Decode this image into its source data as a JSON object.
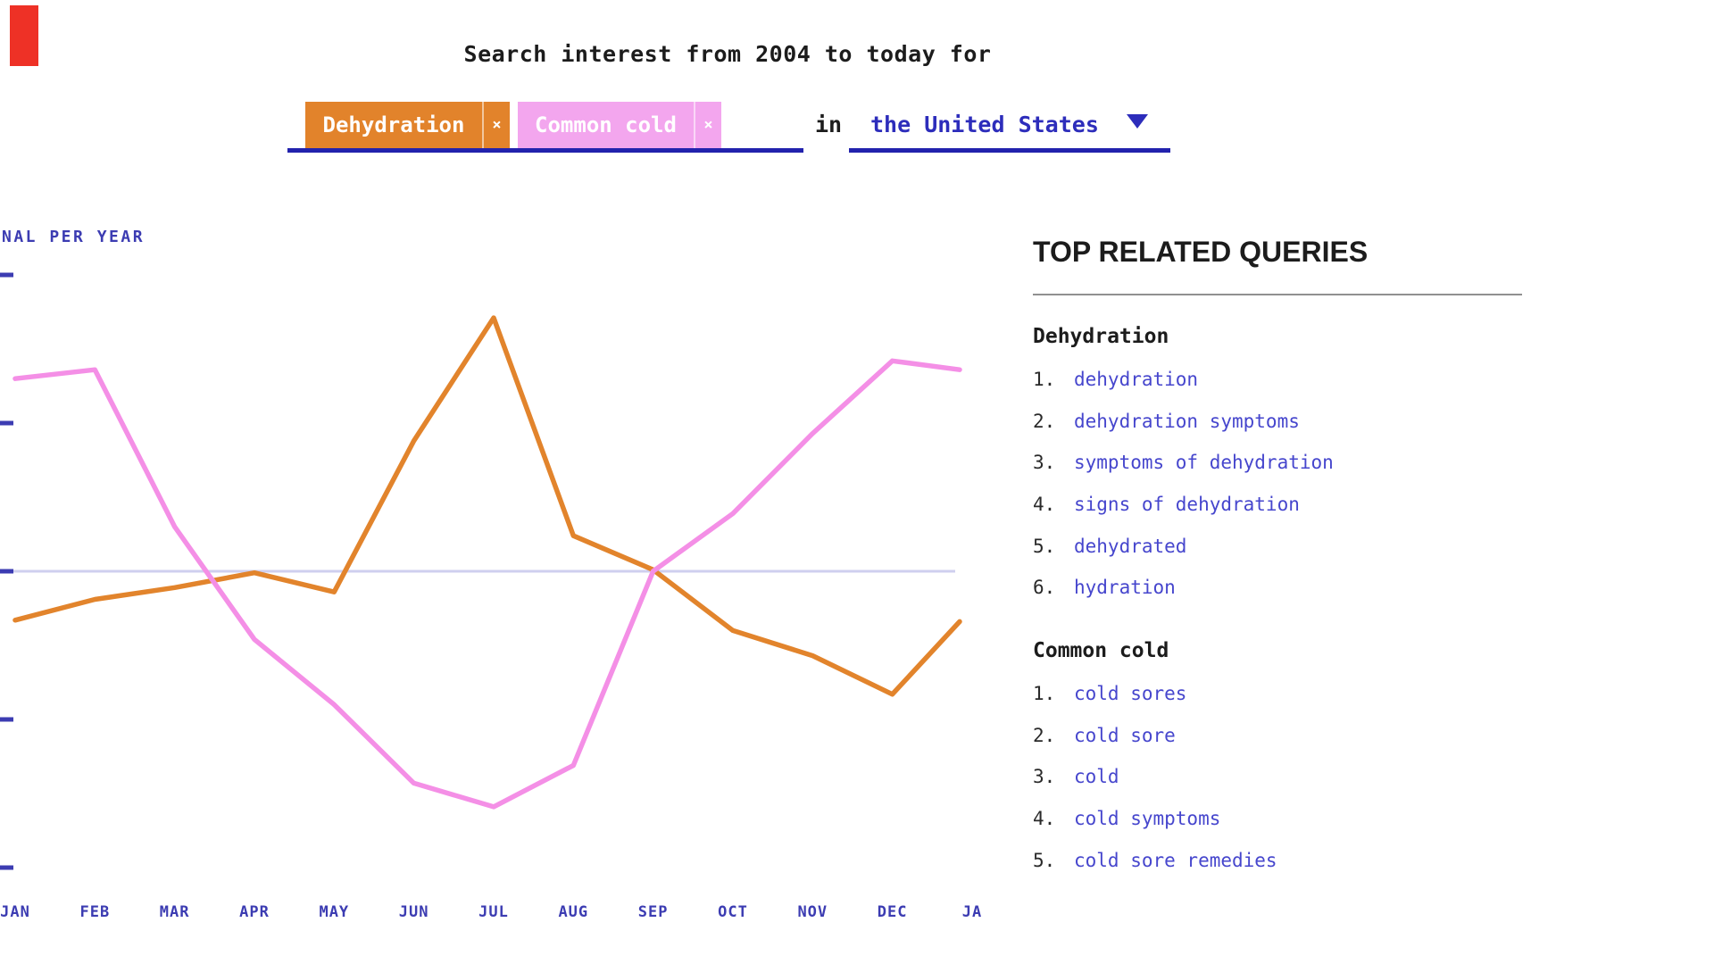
{
  "decor": {
    "red_fragment_color": "#ee3126"
  },
  "header": {
    "title": "Search interest from 2004 to today for",
    "terms": [
      {
        "label": "Dehydration",
        "remove": "×",
        "bg": "#e2832b"
      },
      {
        "label": "Common cold",
        "remove": "×",
        "bg": "#f3a6ee"
      }
    ],
    "in_label": "in",
    "region_label": "the United States"
  },
  "chart": {
    "y_axis_label": "NAL PER YEAR"
  },
  "chart_data": {
    "type": "line",
    "title": "Search interest from 2004 to today for",
    "x_tick_labels": [
      "JAN",
      "FEB",
      "MAR",
      "APR",
      "MAY",
      "JUN",
      "JUL",
      "AUG",
      "SEP",
      "OCT",
      "NOV",
      "DEC",
      "JA"
    ],
    "y_axis_label_visible": "NAL PER YEAR",
    "y_tick_values": [
      2,
      1,
      0,
      -1,
      -2
    ],
    "baseline_value": 0,
    "grid": "single horizontal baseline at 0",
    "legend_position": "none",
    "ylim": [
      -2.4,
      2.4
    ],
    "series": [
      {
        "name": "Dehydration",
        "color": "#e2842c",
        "values": [
          -0.33,
          -0.19,
          -0.11,
          -0.01,
          -0.14,
          0.88,
          1.71,
          0.24,
          0.01,
          -0.4,
          -0.57,
          -0.83,
          -0.34
        ]
      },
      {
        "name": "Common cold",
        "color": "#f48fe6",
        "values": [
          1.3,
          1.36,
          0.3,
          -0.46,
          -0.9,
          -1.43,
          -1.59,
          -1.31,
          0.0,
          0.39,
          0.93,
          1.42,
          1.36
        ]
      }
    ],
    "gridline_color": "#cfcfef",
    "axis_color": "#3c3cb2"
  },
  "related": {
    "heading": "TOP RELATED QUERIES",
    "sections": [
      {
        "header": "Dehydration",
        "items": [
          "dehydration",
          "dehydration symptoms",
          "symptoms of dehydration",
          "signs of dehydration",
          "dehydrated",
          "hydration"
        ]
      },
      {
        "header": "Common cold",
        "items": [
          "cold sores",
          "cold sore",
          "cold",
          "cold symptoms",
          "cold sore remedies"
        ]
      }
    ]
  }
}
